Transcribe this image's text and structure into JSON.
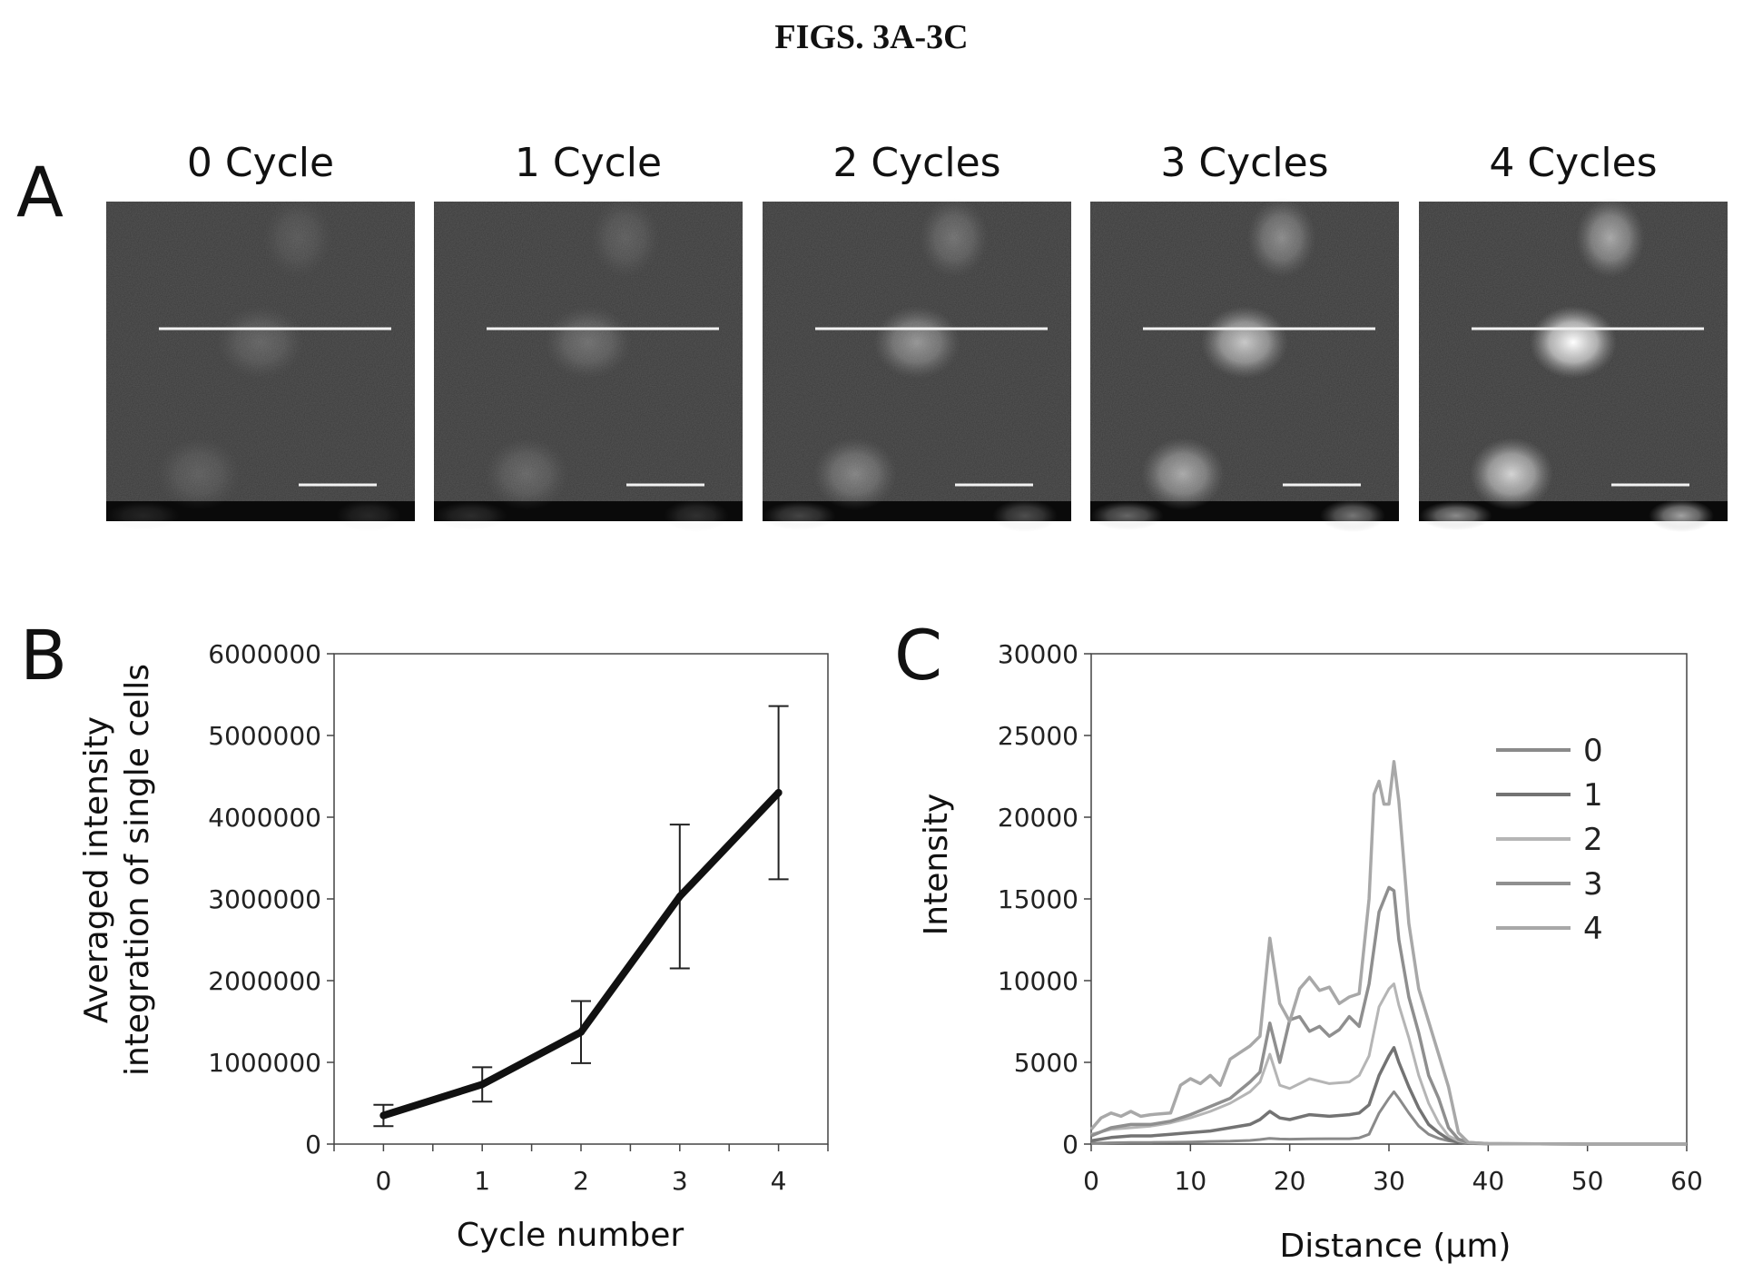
{
  "figure_title": "FIGS. 3A-3C",
  "panel_a": {
    "label": "A",
    "panels": [
      {
        "label": "0 Cycle",
        "intensity": 0.12
      },
      {
        "label": "1 Cycle",
        "intensity": 0.18
      },
      {
        "label": "2 Cycles",
        "intensity": 0.38
      },
      {
        "label": "3 Cycles",
        "intensity": 0.65
      },
      {
        "label": "4 Cycles",
        "intensity": 0.95
      }
    ]
  },
  "chart_data": [
    {
      "panel": "B",
      "type": "line",
      "label": "B",
      "xlabel": "Cycle number",
      "ylabel_lines": [
        "Averaged intensity",
        "integration of single cells"
      ],
      "x": [
        0,
        1,
        2,
        3,
        4
      ],
      "xticks": [
        "0",
        "1",
        "2",
        "3",
        "4"
      ],
      "xlim": [
        -0.5,
        4.5
      ],
      "ylim": [
        0,
        6000000
      ],
      "yticks": [
        "0",
        "1000000",
        "2000000",
        "3000000",
        "4000000",
        "5000000",
        "6000000"
      ],
      "series": [
        {
          "values": [
            350000,
            730000,
            1370000,
            3030000,
            4300000
          ],
          "error": [
            130000,
            210000,
            380000,
            880000,
            1060000
          ],
          "color": "#111111"
        }
      ],
      "grid": false
    },
    {
      "panel": "C",
      "type": "line",
      "label": "C",
      "xlabel": "Distance (µm)",
      "ylabel": "Intensity",
      "xlim": [
        0,
        60
      ],
      "ylim": [
        0,
        30000
      ],
      "xticks": [
        "0",
        "10",
        "20",
        "30",
        "40",
        "50",
        "60"
      ],
      "yticks": [
        "0",
        "5000",
        "10000",
        "15000",
        "20000",
        "25000",
        "30000"
      ],
      "legend": {
        "position": "top-right",
        "entries": [
          "0",
          "1",
          "2",
          "3",
          "4"
        ]
      },
      "series": [
        {
          "name": "0",
          "color": "#8a8a8a",
          "x": [
            0,
            2,
            4,
            6,
            8,
            10,
            12,
            14,
            16,
            17,
            18,
            19,
            20,
            22,
            24,
            26,
            27,
            28,
            29,
            30,
            30.5,
            31,
            32,
            33,
            34,
            35,
            36,
            37,
            38,
            40,
            45,
            50,
            55,
            60
          ],
          "values": [
            50,
            80,
            100,
            100,
            110,
            130,
            160,
            180,
            220,
            280,
            350,
            310,
            300,
            320,
            330,
            330,
            380,
            600,
            1900,
            2800,
            3200,
            2800,
            1900,
            1100,
            600,
            350,
            200,
            100,
            40,
            20,
            10,
            0,
            0,
            0
          ]
        },
        {
          "name": "1",
          "color": "#737373",
          "x": [
            0,
            2,
            4,
            6,
            8,
            10,
            12,
            14,
            16,
            17,
            18,
            19,
            20,
            22,
            24,
            26,
            27,
            28,
            29,
            30,
            30.5,
            31,
            32,
            33,
            34,
            35,
            36,
            37,
            38,
            40,
            45,
            50,
            55,
            60
          ],
          "values": [
            200,
            400,
            500,
            500,
            600,
            700,
            800,
            1000,
            1200,
            1500,
            2000,
            1600,
            1500,
            1800,
            1700,
            1800,
            1900,
            2400,
            4200,
            5400,
            5900,
            5000,
            3500,
            2200,
            1200,
            700,
            300,
            120,
            50,
            20,
            10,
            0,
            0,
            0
          ]
        },
        {
          "name": "2",
          "color": "#b5b5b5",
          "x": [
            0,
            2,
            4,
            6,
            8,
            10,
            12,
            14,
            16,
            17,
            18,
            19,
            20,
            22,
            24,
            26,
            27,
            28,
            29,
            30,
            30.5,
            31,
            32,
            33,
            34,
            35,
            36,
            37,
            38,
            40,
            45,
            50,
            55,
            60
          ],
          "values": [
            600,
            900,
            1000,
            1100,
            1300,
            1600,
            2000,
            2500,
            3200,
            3800,
            5500,
            3600,
            3400,
            4000,
            3700,
            3800,
            4200,
            5400,
            8400,
            9500,
            9800,
            8500,
            6500,
            4200,
            2500,
            1300,
            500,
            200,
            80,
            20,
            10,
            0,
            0,
            0
          ]
        },
        {
          "name": "3",
          "color": "#8f8f8f",
          "x": [
            0,
            2,
            4,
            6,
            8,
            10,
            12,
            14,
            16,
            17,
            18,
            19,
            20,
            21,
            22,
            23,
            24,
            25,
            26,
            27,
            28,
            29,
            30,
            30.5,
            31,
            32,
            33,
            34,
            35,
            36,
            37,
            38,
            40,
            45,
            50,
            55,
            60
          ],
          "values": [
            500,
            1000,
            1200,
            1200,
            1400,
            1800,
            2300,
            2800,
            3800,
            4400,
            7400,
            5000,
            7600,
            7800,
            6900,
            7200,
            6600,
            7000,
            7800,
            7200,
            9800,
            14200,
            15700,
            15500,
            12500,
            9000,
            6800,
            4200,
            2800,
            1000,
            300,
            100,
            30,
            10,
            0,
            0,
            0
          ]
        },
        {
          "name": "4",
          "color": "#a8a8a8",
          "x": [
            0,
            1,
            2,
            3,
            4,
            5,
            6,
            8,
            9,
            10,
            11,
            12,
            13,
            14,
            15,
            16,
            17,
            18,
            19,
            20,
            21,
            22,
            23,
            24,
            25,
            26,
            27,
            28,
            28.5,
            29,
            29.5,
            30,
            30.5,
            31,
            32,
            33,
            34,
            35,
            36,
            37,
            38,
            40,
            45,
            50,
            55,
            60
          ],
          "values": [
            900,
            1600,
            1900,
            1700,
            2000,
            1700,
            1800,
            1900,
            3600,
            4000,
            3700,
            4200,
            3600,
            5200,
            5600,
            6000,
            6600,
            12600,
            8600,
            7500,
            9500,
            10200,
            9400,
            9600,
            8600,
            9000,
            9200,
            15000,
            21400,
            22200,
            20800,
            20800,
            23400,
            21000,
            13500,
            9500,
            7500,
            5500,
            3500,
            700,
            100,
            30,
            10,
            0,
            0,
            0
          ]
        }
      ],
      "grid": false
    }
  ]
}
